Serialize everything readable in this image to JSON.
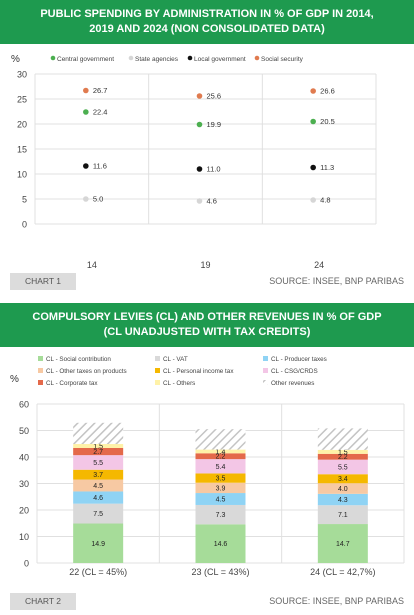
{
  "chart_data": [
    {
      "type": "scatter",
      "title": "PUBLIC SPENDING BY ADMINISTRATION IN % OF GDP IN 2014, 2019 AND 2024 (NON CONSOLIDATED DATA)",
      "title_lines": [
        "PUBLIC SPENDING BY ADMINISTRATION IN % OF GDP IN 2014,",
        "2019 AND 2024 (NON CONSOLIDATED DATA)"
      ],
      "ylabel": "%",
      "ylim": [
        0,
        30
      ],
      "yticks": [
        "0",
        "5",
        "10",
        "15",
        "20",
        "25",
        "30"
      ],
      "categories": [
        "14",
        "19",
        "24"
      ],
      "grid": true,
      "legend_position": "top",
      "series": [
        {
          "name": "Central government",
          "color": "#4caf50",
          "values": [
            22.4,
            19.9,
            20.5
          ],
          "labels": [
            "22.4",
            "19.9",
            "20.5"
          ]
        },
        {
          "name": "State agencies",
          "color": "#d6d6d6",
          "values": [
            5.0,
            4.6,
            4.8
          ],
          "labels": [
            "5.0",
            "4.6",
            "4.8"
          ]
        },
        {
          "name": "Local government",
          "color": "#111111",
          "values": [
            11.6,
            11.0,
            11.3
          ],
          "labels": [
            "11.6",
            "11.0",
            "11.3"
          ]
        },
        {
          "name": "Social security",
          "color": "#e07b4f",
          "values": [
            26.7,
            25.6,
            26.6
          ],
          "labels": [
            "26.7",
            "25.6",
            "26.6"
          ]
        }
      ],
      "chart_label": "CHART 1",
      "source": "SOURCE: INSEE, BNP PARIBAS"
    },
    {
      "type": "bar",
      "stacked": true,
      "title": "COMPULSORY LEVIES (CL) AND OTHER REVENUES IN % OF GDP (CL UNADJUSTED WITH TAX CREDITS)",
      "title_lines": [
        "COMPULSORY LEVIES (CL) AND OTHER REVENUES IN % OF GDP",
        "(CL UNADJUSTED WITH TAX CREDITS)"
      ],
      "ylabel": "%",
      "ylim": [
        0,
        60
      ],
      "yticks": [
        "0",
        "10",
        "20",
        "30",
        "40",
        "50",
        "60"
      ],
      "categories": [
        "22 (CL = 45%)",
        "23 (CL = 43%)",
        "24 (CL = 42,7%)"
      ],
      "grid": true,
      "legend_position": "top",
      "series": [
        {
          "name": "CL - Social contribution",
          "color": "#a6dc99",
          "values": [
            14.9,
            14.6,
            14.7
          ],
          "labels": [
            "14.9",
            "14.6",
            "14.7"
          ]
        },
        {
          "name": "CL - VAT",
          "color": "#d9d9d9",
          "values": [
            7.5,
            7.3,
            7.1
          ],
          "labels": [
            "7.5",
            "7.3",
            "7.1"
          ]
        },
        {
          "name": "CL - Producer taxes",
          "color": "#8fd3f4",
          "values": [
            4.6,
            4.5,
            4.3
          ],
          "labels": [
            "4.6",
            "4.5",
            "4.3"
          ]
        },
        {
          "name": "CL - Other taxes on products",
          "color": "#f7c9a3",
          "values": [
            4.5,
            3.9,
            4.0
          ],
          "labels": [
            "4.5",
            "3.9",
            "4.0"
          ]
        },
        {
          "name": "CL - Personal income tax",
          "color": "#f5b800",
          "values": [
            3.7,
            3.5,
            3.4
          ],
          "labels": [
            "3.7",
            "3.5",
            "3.4"
          ]
        },
        {
          "name": "CL - CSG/CRDS",
          "color": "#f3c6e6",
          "values": [
            5.5,
            5.4,
            5.5
          ],
          "labels": [
            "5.5",
            "5.4",
            "5.5"
          ]
        },
        {
          "name": "CL - Corporate tax",
          "color": "#e4694a",
          "values": [
            2.7,
            2.2,
            2.2
          ],
          "labels": [
            "2.7",
            "2.2",
            "2.2"
          ]
        },
        {
          "name": "CL - Others",
          "color": "#fff2a8",
          "values": [
            1.5,
            1.4,
            1.5
          ],
          "labels": [
            "1.5",
            "1.4",
            "1.5"
          ]
        },
        {
          "name": "Other revenues",
          "color": "#d0d0d0",
          "pattern": "hatch",
          "values": [
            8.0,
            7.7,
            8.1
          ],
          "labels": [
            "",
            "",
            ""
          ]
        }
      ],
      "chart_label": "CHART 2",
      "source": "SOURCE: INSEE, BNP PARIBAS"
    }
  ]
}
